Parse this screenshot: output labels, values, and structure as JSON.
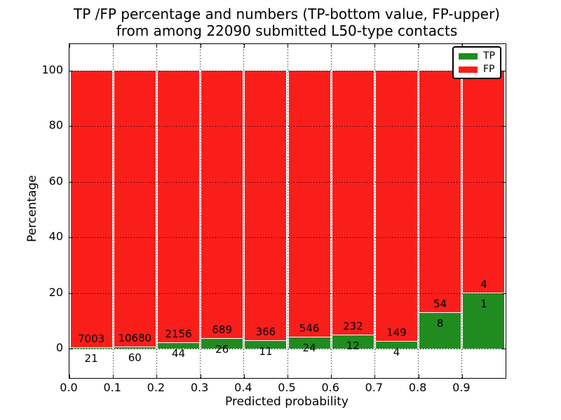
{
  "title": {
    "line1": "TP /FP percentage and numbers (TP-bottom value, FP-upper)",
    "line2": "from among 22090 submitted L50-type contacts"
  },
  "axes": {
    "xlabel": "Predicted probability",
    "ylabel": "Percentage",
    "x_tick_labels": [
      "0.0",
      "0.1",
      "0.2",
      "0.3",
      "0.4",
      "0.5",
      "0.6",
      "0.7",
      "0.8",
      "0.9"
    ],
    "y_tick_labels": [
      "0",
      "20",
      "40",
      "60",
      "80",
      "100"
    ],
    "y_tick_values": [
      0,
      20,
      40,
      60,
      80,
      100
    ]
  },
  "legend": {
    "items": [
      {
        "label": "TP",
        "color": "#208c20"
      },
      {
        "label": "FP",
        "color": "#fa1e1b"
      }
    ]
  },
  "colors": {
    "tp_green": "#208c20",
    "fp_red": "#fa1e1b",
    "bar_edge": "#ffffff",
    "grid": "#000000",
    "background": "#ffffff"
  },
  "chart_data": {
    "type": "bar",
    "stacked": true,
    "title": "TP /FP percentage and numbers (TP-bottom value, FP-upper) from among 22090 submitted L50-type contacts",
    "xlabel": "Predicted probability",
    "ylabel": "Percentage",
    "xlim": [
      0.0,
      1.0
    ],
    "ylim": [
      -10.5,
      109.5
    ],
    "grid": true,
    "legend_position": "upper right",
    "total_submitted": 22090,
    "bin_width": 0.1,
    "categories": [
      "0.0-0.1",
      "0.1-0.2",
      "0.2-0.3",
      "0.3-0.4",
      "0.4-0.5",
      "0.5-0.6",
      "0.6-0.7",
      "0.7-0.8",
      "0.8-0.9",
      "0.9-1.0"
    ],
    "series": [
      {
        "name": "TP",
        "color": "#208c20",
        "counts": [
          21,
          60,
          44,
          26,
          11,
          24,
          12,
          4,
          8,
          1
        ],
        "percent": [
          0.3,
          0.56,
          2.0,
          3.64,
          2.92,
          4.21,
          4.92,
          2.61,
          12.9,
          20.0
        ]
      },
      {
        "name": "FP",
        "color": "#fa1e1b",
        "counts": [
          7003,
          10680,
          2156,
          689,
          366,
          546,
          232,
          149,
          54,
          4
        ],
        "percent": [
          99.7,
          99.44,
          98.0,
          96.36,
          97.08,
          95.79,
          95.08,
          97.39,
          87.1,
          80.0
        ]
      }
    ]
  }
}
